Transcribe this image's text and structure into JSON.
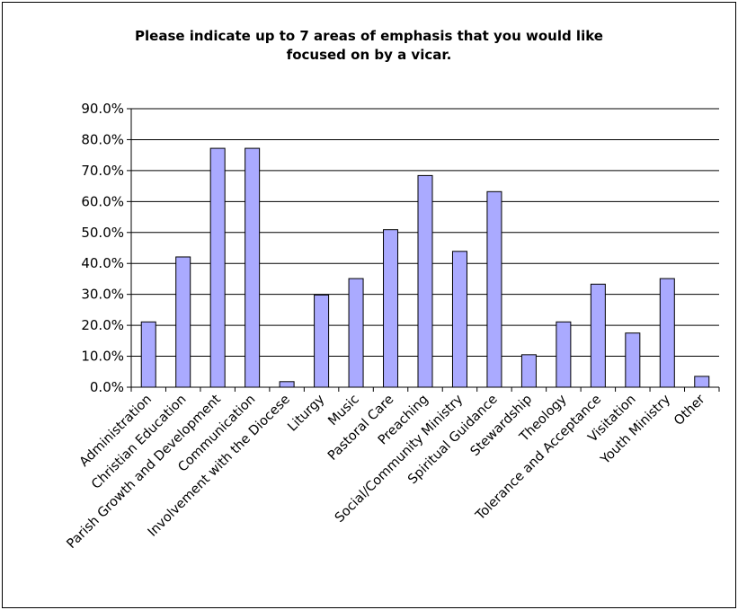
{
  "chart_data": {
    "type": "bar",
    "title_lines": [
      "Please indicate up to 7 areas of emphasis that you would like",
      "focused on by a vicar."
    ],
    "categories": [
      "Administration",
      "Christian Education",
      "Parish Growth and Development",
      "Communication",
      "Involvement with the Diocese",
      "Liturgy",
      "Music",
      "Pastoral Care",
      "Preaching",
      "Social/Community Ministry",
      "Spiritual Guidance",
      "Stewardship",
      "Theology",
      "Tolerance and Acceptance",
      "Visitation",
      "Youth Ministry",
      "Other"
    ],
    "values": [
      21.1,
      42.1,
      77.2,
      77.2,
      1.8,
      29.8,
      35.1,
      50.9,
      68.4,
      43.9,
      63.2,
      10.5,
      21.1,
      33.3,
      17.5,
      35.1,
      3.5
    ],
    "y_ticks": [
      "0.0%",
      "10.0%",
      "20.0%",
      "30.0%",
      "40.0%",
      "50.0%",
      "60.0%",
      "70.0%",
      "80.0%",
      "90.0%"
    ],
    "ylim": [
      0,
      90
    ],
    "xlabel": "",
    "ylabel": "",
    "grid": true,
    "legend": false,
    "colors": {
      "bar_fill": "#aaaaff",
      "bar_stroke": "#000000",
      "grid": "#000000"
    }
  }
}
